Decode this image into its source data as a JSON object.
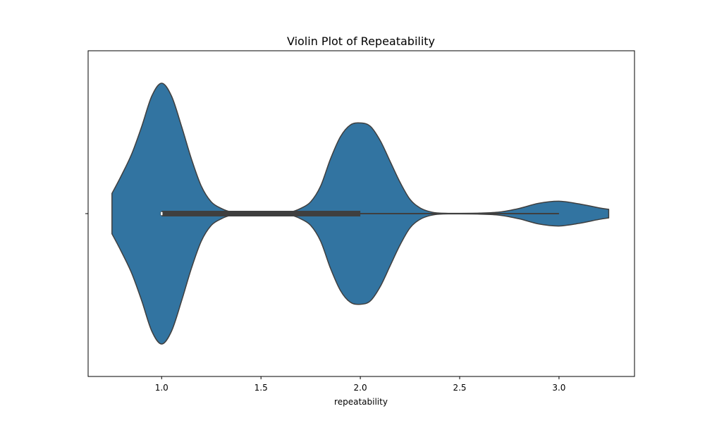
{
  "chart_data": {
    "type": "violin",
    "title": "Violin Plot of Repeatability",
    "xlabel": "repeatability",
    "ylabel": "",
    "xlim": [
      0.63,
      3.38
    ],
    "xticks": [
      1.0,
      1.5,
      2.0,
      2.5,
      3.0
    ],
    "xtick_labels": [
      "1.0",
      "1.5",
      "2.0",
      "2.5",
      "3.0"
    ],
    "grid": false,
    "fill_color": "#3274a1",
    "line_color": "#3f3f3f",
    "density_profile": [
      [
        0.75,
        0.155
      ],
      [
        0.8,
        0.3
      ],
      [
        0.85,
        0.46
      ],
      [
        0.9,
        0.67
      ],
      [
        0.95,
        0.9
      ],
      [
        1.0,
        1.0
      ],
      [
        1.05,
        0.9
      ],
      [
        1.1,
        0.67
      ],
      [
        1.15,
        0.42
      ],
      [
        1.2,
        0.21
      ],
      [
        1.25,
        0.09
      ],
      [
        1.3,
        0.04
      ],
      [
        1.35,
        0.012
      ],
      [
        1.4,
        0.006
      ],
      [
        1.5,
        0.003
      ],
      [
        1.6,
        0.006
      ],
      [
        1.65,
        0.012
      ],
      [
        1.7,
        0.04
      ],
      [
        1.75,
        0.09
      ],
      [
        1.8,
        0.21
      ],
      [
        1.85,
        0.42
      ],
      [
        1.9,
        0.59
      ],
      [
        1.95,
        0.68
      ],
      [
        2.0,
        0.695
      ],
      [
        2.05,
        0.67
      ],
      [
        2.1,
        0.56
      ],
      [
        2.15,
        0.4
      ],
      [
        2.2,
        0.24
      ],
      [
        2.25,
        0.11
      ],
      [
        2.3,
        0.045
      ],
      [
        2.35,
        0.015
      ],
      [
        2.4,
        0.004
      ],
      [
        2.5,
        0.002
      ],
      [
        2.6,
        0.004
      ],
      [
        2.7,
        0.012
      ],
      [
        2.8,
        0.04
      ],
      [
        2.9,
        0.08
      ],
      [
        3.0,
        0.095
      ],
      [
        3.1,
        0.075
      ],
      [
        3.2,
        0.045
      ],
      [
        3.25,
        0.033
      ]
    ],
    "box": {
      "q1": 1.0,
      "q3": 2.0,
      "whisker_low": 1.0,
      "whisker_high": 3.0,
      "median": 1.0
    }
  }
}
